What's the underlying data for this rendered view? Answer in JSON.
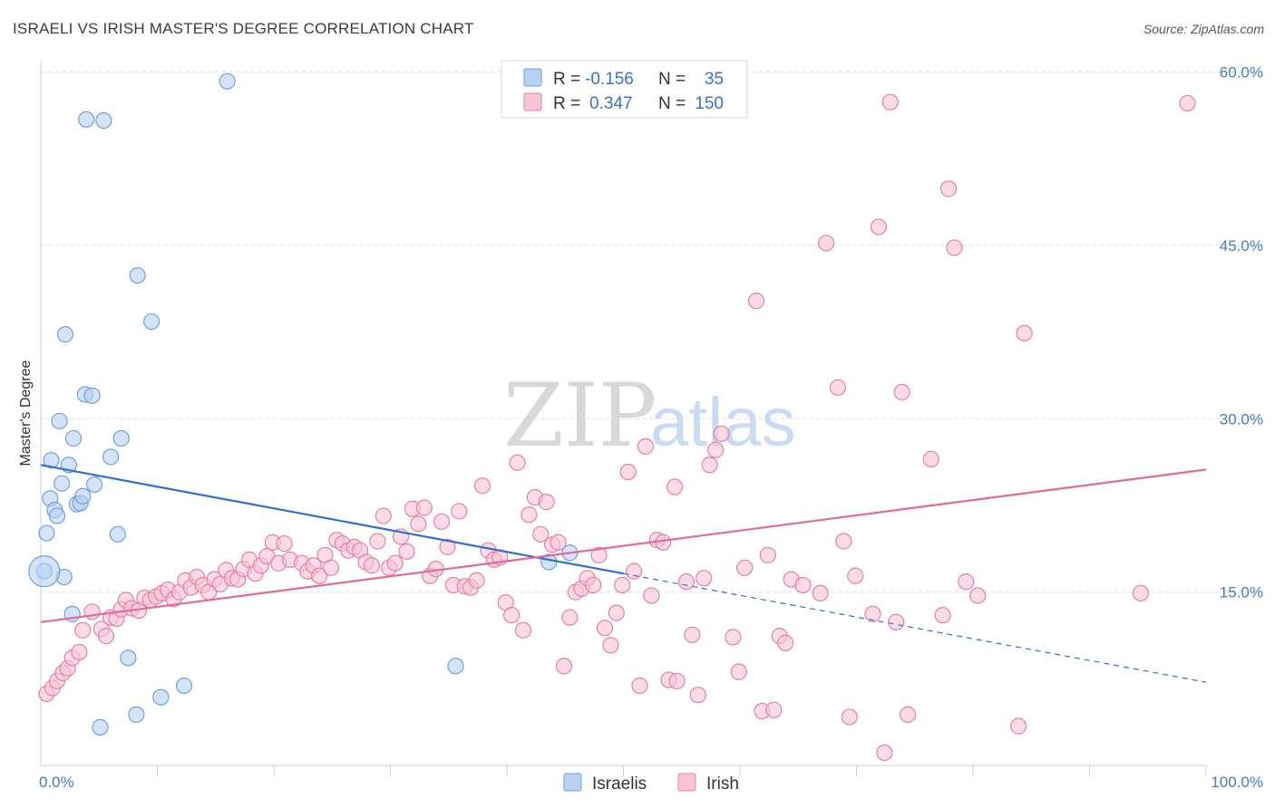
{
  "title": "ISRAELI VS IRISH MASTER'S DEGREE CORRELATION CHART",
  "source": "Source: ZipAtlas.com",
  "watermark": {
    "zip": "ZIP",
    "atlas": "atlas"
  },
  "chart_data": {
    "type": "scatter",
    "ylabel": "Master's Degree",
    "xlim": [
      0,
      100
    ],
    "ylim": [
      0,
      60
    ],
    "x_ticks": [
      {
        "value": 0,
        "label": "0.0%"
      },
      {
        "value": 100,
        "label": "100.0%"
      }
    ],
    "y_ticks": [
      {
        "value": 15,
        "label": "15.0%"
      },
      {
        "value": 30,
        "label": "30.0%"
      },
      {
        "value": 45,
        "label": "45.0%"
      },
      {
        "value": 60,
        "label": "60.0%"
      }
    ],
    "grid": "horizontal-dashed",
    "legend_position": "top-center",
    "legend": [
      {
        "r_label": "R =",
        "r_value": "-0.156",
        "n_label": "N =",
        "n_value": "35"
      },
      {
        "r_label": "R =",
        "r_value": "0.347",
        "n_label": "N =",
        "n_value": "150"
      }
    ],
    "series": [
      {
        "name": "Israelis",
        "color": "#6f9fe0",
        "fill": "#b8d1f3",
        "trend": {
          "x0": 0,
          "y0": 26.0,
          "x1": 50,
          "y1": 16.6,
          "dash_x1": 100,
          "dash_y1": 7.2,
          "color": "#2f6fd0"
        },
        "points": [
          [
            0.3,
            16.8
          ],
          [
            0.5,
            20.1
          ],
          [
            0.8,
            23.1
          ],
          [
            0.9,
            26.4
          ],
          [
            1.2,
            22.1
          ],
          [
            1.4,
            21.6
          ],
          [
            1.6,
            29.8
          ],
          [
            1.8,
            24.4
          ],
          [
            2.0,
            16.3
          ],
          [
            2.1,
            37.3
          ],
          [
            2.4,
            26.0
          ],
          [
            2.7,
            13.1
          ],
          [
            2.8,
            28.3
          ],
          [
            3.1,
            22.6
          ],
          [
            3.4,
            22.7
          ],
          [
            3.6,
            23.3
          ],
          [
            3.8,
            32.1
          ],
          [
            3.9,
            55.9
          ],
          [
            4.4,
            32.0
          ],
          [
            4.6,
            24.3
          ],
          [
            5.1,
            3.3
          ],
          [
            5.4,
            55.8
          ],
          [
            6.0,
            26.7
          ],
          [
            6.6,
            20.0
          ],
          [
            6.9,
            28.3
          ],
          [
            7.5,
            9.3
          ],
          [
            8.2,
            4.4
          ],
          [
            8.3,
            42.4
          ],
          [
            9.5,
            38.4
          ],
          [
            10.3,
            5.9
          ],
          [
            12.3,
            6.9
          ],
          [
            16.0,
            59.2
          ],
          [
            35.6,
            8.6
          ],
          [
            43.6,
            17.6
          ],
          [
            45.4,
            18.4
          ]
        ]
      },
      {
        "name": "Irish",
        "color": "#e87fa4",
        "fill": "#f7c3d5",
        "trend": {
          "x0": 0,
          "y0": 12.4,
          "x1": 100,
          "y1": 25.6,
          "color": "#e06b95"
        },
        "points": [
          [
            0.5,
            6.2
          ],
          [
            1.0,
            6.7
          ],
          [
            1.4,
            7.3
          ],
          [
            1.9,
            8.0
          ],
          [
            2.3,
            8.4
          ],
          [
            2.7,
            9.3
          ],
          [
            3.3,
            9.8
          ],
          [
            3.6,
            11.7
          ],
          [
            4.4,
            13.3
          ],
          [
            5.2,
            11.8
          ],
          [
            5.6,
            11.2
          ],
          [
            6.0,
            12.8
          ],
          [
            6.5,
            12.7
          ],
          [
            6.9,
            13.5
          ],
          [
            7.3,
            14.3
          ],
          [
            7.8,
            13.6
          ],
          [
            8.4,
            13.4
          ],
          [
            8.9,
            14.5
          ],
          [
            9.4,
            14.3
          ],
          [
            9.9,
            14.6
          ],
          [
            10.4,
            14.9
          ],
          [
            10.9,
            15.2
          ],
          [
            11.4,
            14.4
          ],
          [
            11.9,
            15.0
          ],
          [
            12.4,
            16.0
          ],
          [
            12.9,
            15.4
          ],
          [
            13.4,
            16.3
          ],
          [
            13.9,
            15.6
          ],
          [
            14.4,
            15.0
          ],
          [
            14.9,
            16.1
          ],
          [
            15.4,
            15.7
          ],
          [
            15.9,
            16.9
          ],
          [
            16.4,
            16.2
          ],
          [
            16.9,
            16.1
          ],
          [
            17.4,
            17.0
          ],
          [
            17.9,
            17.8
          ],
          [
            18.4,
            16.6
          ],
          [
            18.9,
            17.3
          ],
          [
            19.4,
            18.1
          ],
          [
            19.9,
            19.3
          ],
          [
            20.4,
            17.5
          ],
          [
            20.9,
            19.2
          ],
          [
            21.4,
            17.8
          ],
          [
            22.4,
            17.5
          ],
          [
            22.9,
            16.8
          ],
          [
            23.4,
            17.3
          ],
          [
            23.9,
            16.4
          ],
          [
            24.4,
            18.2
          ],
          [
            24.9,
            17.1
          ],
          [
            25.4,
            19.5
          ],
          [
            25.9,
            19.2
          ],
          [
            26.4,
            18.6
          ],
          [
            26.9,
            18.9
          ],
          [
            27.4,
            18.6
          ],
          [
            27.9,
            17.6
          ],
          [
            28.4,
            17.3
          ],
          [
            28.9,
            19.4
          ],
          [
            29.4,
            21.6
          ],
          [
            29.9,
            17.1
          ],
          [
            30.4,
            17.5
          ],
          [
            30.9,
            19.8
          ],
          [
            31.4,
            18.5
          ],
          [
            31.9,
            22.2
          ],
          [
            32.4,
            20.9
          ],
          [
            32.9,
            22.3
          ],
          [
            33.4,
            16.4
          ],
          [
            33.9,
            17.0
          ],
          [
            34.4,
            21.1
          ],
          [
            34.9,
            18.9
          ],
          [
            35.4,
            15.6
          ],
          [
            35.9,
            22.0
          ],
          [
            36.4,
            15.5
          ],
          [
            36.9,
            15.4
          ],
          [
            37.4,
            16.0
          ],
          [
            37.9,
            24.2
          ],
          [
            38.4,
            18.6
          ],
          [
            38.9,
            17.8
          ],
          [
            39.4,
            18.0
          ],
          [
            39.9,
            14.1
          ],
          [
            40.4,
            13.0
          ],
          [
            40.9,
            26.2
          ],
          [
            41.4,
            11.7
          ],
          [
            41.9,
            21.7
          ],
          [
            42.4,
            23.2
          ],
          [
            42.9,
            20.0
          ],
          [
            43.4,
            22.8
          ],
          [
            43.9,
            19.1
          ],
          [
            44.4,
            19.3
          ],
          [
            44.9,
            8.6
          ],
          [
            45.4,
            12.8
          ],
          [
            45.9,
            15.0
          ],
          [
            46.4,
            15.3
          ],
          [
            46.9,
            16.2
          ],
          [
            47.4,
            15.6
          ],
          [
            47.9,
            18.2
          ],
          [
            48.4,
            11.9
          ],
          [
            48.9,
            10.4
          ],
          [
            49.4,
            13.2
          ],
          [
            49.9,
            15.6
          ],
          [
            50.4,
            25.4
          ],
          [
            50.9,
            16.8
          ],
          [
            51.4,
            6.9
          ],
          [
            51.9,
            27.6
          ],
          [
            52.4,
            14.7
          ],
          [
            52.9,
            19.5
          ],
          [
            53.4,
            19.3
          ],
          [
            53.9,
            7.4
          ],
          [
            54.4,
            24.1
          ],
          [
            54.6,
            7.3
          ],
          [
            55.4,
            15.9
          ],
          [
            55.9,
            11.3
          ],
          [
            56.4,
            6.1
          ],
          [
            56.9,
            16.2
          ],
          [
            57.4,
            26.0
          ],
          [
            57.9,
            27.3
          ],
          [
            58.4,
            28.7
          ],
          [
            59.4,
            11.1
          ],
          [
            59.9,
            8.1
          ],
          [
            60.4,
            17.1
          ],
          [
            61.4,
            40.2
          ],
          [
            61.9,
            4.7
          ],
          [
            62.4,
            18.2
          ],
          [
            62.9,
            4.8
          ],
          [
            63.4,
            11.2
          ],
          [
            63.9,
            10.6
          ],
          [
            64.4,
            16.1
          ],
          [
            65.4,
            15.6
          ],
          [
            66.9,
            14.9
          ],
          [
            67.4,
            45.2
          ],
          [
            68.4,
            32.7
          ],
          [
            68.9,
            19.4
          ],
          [
            69.4,
            4.2
          ],
          [
            69.9,
            16.4
          ],
          [
            71.4,
            13.1
          ],
          [
            71.9,
            46.6
          ],
          [
            72.4,
            1.1
          ],
          [
            72.9,
            57.4
          ],
          [
            73.4,
            12.4
          ],
          [
            73.9,
            32.3
          ],
          [
            74.4,
            4.4
          ],
          [
            76.4,
            26.5
          ],
          [
            77.4,
            13.0
          ],
          [
            77.9,
            49.9
          ],
          [
            78.4,
            44.8
          ],
          [
            79.4,
            15.9
          ],
          [
            80.4,
            14.7
          ],
          [
            84.4,
            37.4
          ],
          [
            83.9,
            3.4
          ],
          [
            94.4,
            14.9
          ],
          [
            98.4,
            57.3
          ]
        ]
      }
    ]
  },
  "bottom_legend": [
    {
      "label": "Israelis"
    },
    {
      "label": "Irish"
    }
  ]
}
